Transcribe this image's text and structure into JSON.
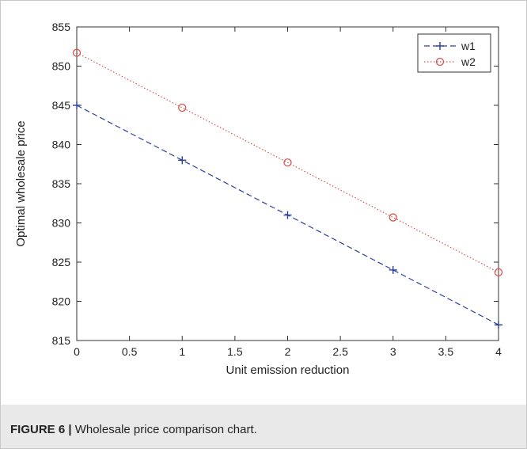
{
  "figure": {
    "label": "FIGURE 6 |",
    "caption": " Wholesale price comparison chart."
  },
  "chart_data": {
    "type": "line",
    "xlabel": "Unit emission reduction",
    "ylabel": "Optimal wholesale price",
    "xlim": [
      0,
      4
    ],
    "ylim": [
      815,
      855
    ],
    "xticks": [
      "0",
      "0.5",
      "1",
      "1.5",
      "2",
      "2.5",
      "3",
      "3.5",
      "4"
    ],
    "yticks": [
      "815",
      "820",
      "825",
      "830",
      "835",
      "840",
      "845",
      "850",
      "855"
    ],
    "grid": false,
    "legend_position": "top-right",
    "x": [
      0,
      1,
      2,
      3,
      4
    ],
    "series": [
      {
        "name": "w1",
        "values": [
          845,
          838,
          831,
          824,
          817
        ],
        "color": "#2b3f9c",
        "line_style": "dashed",
        "marker": "plus"
      },
      {
        "name": "w2",
        "values": [
          851.7,
          844.7,
          837.7,
          830.7,
          823.7
        ],
        "color": "#d9534f",
        "line_style": "dotted",
        "marker": "circle"
      }
    ]
  }
}
